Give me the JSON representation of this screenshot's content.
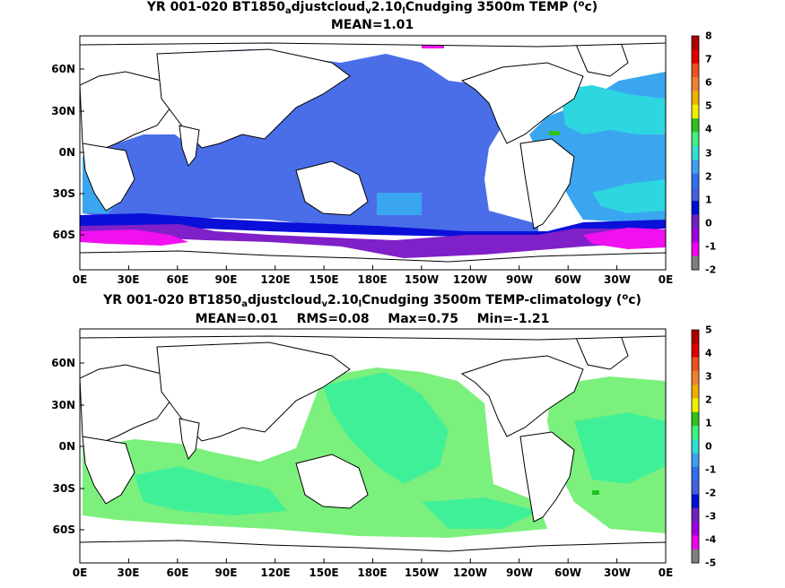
{
  "panels": [
    {
      "title_parts": [
        "YR 001-020 BT1850",
        "a",
        "djustcloud",
        "v",
        "2.10",
        "l",
        "Cnudging 3500m TEMP (",
        "o",
        "c)"
      ],
      "stats": [
        "MEAN=1.01"
      ],
      "x_ticks": [
        "0E",
        "30E",
        "60E",
        "90E",
        "120E",
        "150E",
        "180E",
        "150W",
        "120W",
        "90W",
        "60W",
        "30W",
        "0E"
      ],
      "y_ticks": [
        "60N",
        "30N",
        "0N",
        "30S",
        "60S"
      ],
      "colorbar_labels": [
        "8",
        "7",
        "6",
        "5",
        "4",
        "3",
        "2",
        "1",
        "0",
        "-1",
        "-2"
      ]
    },
    {
      "title_parts": [
        "YR 001-020 BT1850",
        "a",
        "djustcloud",
        "v",
        "2.10",
        "l",
        "Cnudging 3500m TEMP-climatology (",
        "o",
        "c)"
      ],
      "stats": [
        "MEAN=0.01",
        "RMS=0.08",
        "Max=0.75",
        "Min=-1.21"
      ],
      "x_ticks": [
        "0E",
        "30E",
        "60E",
        "90E",
        "120E",
        "150E",
        "180E",
        "150W",
        "120W",
        "90W",
        "60W",
        "30W",
        "0E"
      ],
      "y_ticks": [
        "60N",
        "30N",
        "0N",
        "30S",
        "60S"
      ],
      "colorbar_labels": [
        "5",
        "4",
        "3",
        "2",
        "1",
        "0",
        "-1",
        "-2",
        "-3",
        "-4",
        "-5"
      ]
    }
  ],
  "colors": {
    "palette_top_to_bottom": [
      "#b00000",
      "#e00000",
      "#f05020",
      "#f08030",
      "#f0b000",
      "#f0f000",
      "#30c020",
      "#40f080",
      "#30e0d0",
      "#40a0f0",
      "#3070f0",
      "#4060e0",
      "#0010d0",
      "#7020c0",
      "#a000e0",
      "#f000f0",
      "#808080"
    ],
    "ocean_top": "#4a6ee8",
    "ocean_top_cyan": "#2ed6e0",
    "ocean_top_lightblue": "#3aa6f0",
    "ocean_top_south": "#0a10d8",
    "ocean_top_purple": "#8020c8",
    "ocean_top_magenta": "#f010f0",
    "ocean_bottom_light": "#7cf07c",
    "ocean_bottom_mid": "#40f098",
    "ocean_bottom_green": "#20c020"
  }
}
